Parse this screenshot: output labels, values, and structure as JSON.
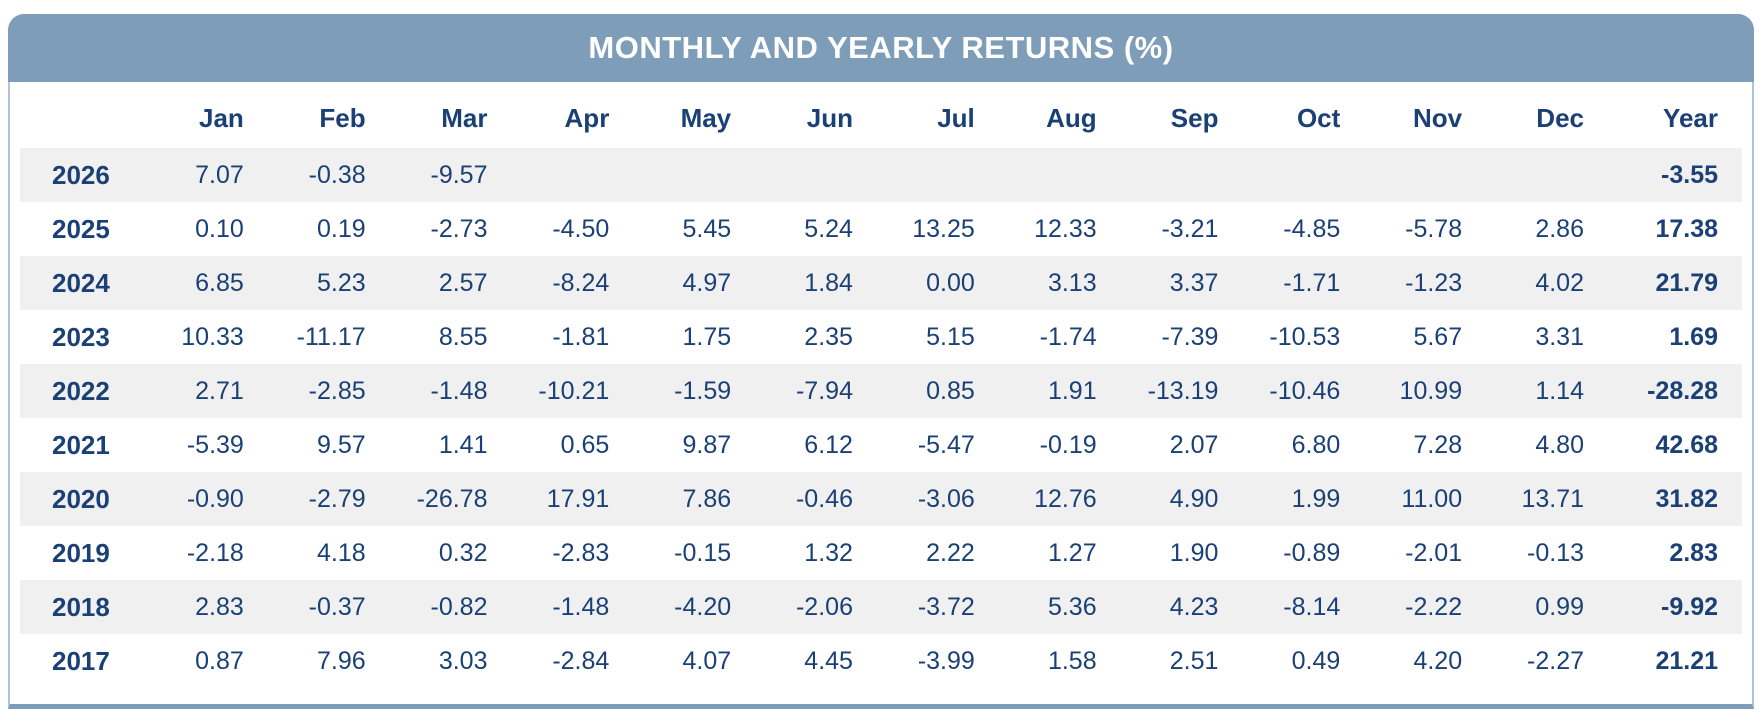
{
  "title": "MONTHLY AND YEARLY RETURNS (%)",
  "colors": {
    "header_bg": "#7e9db9",
    "header_text": "#ffffff",
    "text": "#1a4075",
    "row_alt_bg": "#f0f0f0",
    "side_border": "#b0c4d7"
  },
  "chart_data": {
    "type": "table",
    "title": "MONTHLY AND YEARLY RETURNS (%)",
    "columns": [
      "Jan",
      "Feb",
      "Mar",
      "Apr",
      "May",
      "Jun",
      "Jul",
      "Aug",
      "Sep",
      "Oct",
      "Nov",
      "Dec",
      "Year"
    ],
    "rows": [
      {
        "year": "2026",
        "monthly": [
          "7.07",
          "-0.38",
          "-9.57",
          "",
          "",
          "",
          "",
          "",
          "",
          "",
          "",
          ""
        ],
        "yearly": "-3.55"
      },
      {
        "year": "2025",
        "monthly": [
          "0.10",
          "0.19",
          "-2.73",
          "-4.50",
          "5.45",
          "5.24",
          "13.25",
          "12.33",
          "-3.21",
          "-4.85",
          "-5.78",
          "2.86"
        ],
        "yearly": "17.38"
      },
      {
        "year": "2024",
        "monthly": [
          "6.85",
          "5.23",
          "2.57",
          "-8.24",
          "4.97",
          "1.84",
          "0.00",
          "3.13",
          "3.37",
          "-1.71",
          "-1.23",
          "4.02"
        ],
        "yearly": "21.79"
      },
      {
        "year": "2023",
        "monthly": [
          "10.33",
          "-11.17",
          "8.55",
          "-1.81",
          "1.75",
          "2.35",
          "5.15",
          "-1.74",
          "-7.39",
          "-10.53",
          "5.67",
          "3.31"
        ],
        "yearly": "1.69"
      },
      {
        "year": "2022",
        "monthly": [
          "2.71",
          "-2.85",
          "-1.48",
          "-10.21",
          "-1.59",
          "-7.94",
          "0.85",
          "1.91",
          "-13.19",
          "-10.46",
          "10.99",
          "1.14"
        ],
        "yearly": "-28.28"
      },
      {
        "year": "2021",
        "monthly": [
          "-5.39",
          "9.57",
          "1.41",
          "0.65",
          "9.87",
          "6.12",
          "-5.47",
          "-0.19",
          "2.07",
          "6.80",
          "7.28",
          "4.80"
        ],
        "yearly": "42.68"
      },
      {
        "year": "2020",
        "monthly": [
          "-0.90",
          "-2.79",
          "-26.78",
          "17.91",
          "7.86",
          "-0.46",
          "-3.06",
          "12.76",
          "4.90",
          "1.99",
          "11.00",
          "13.71"
        ],
        "yearly": "31.82"
      },
      {
        "year": "2019",
        "monthly": [
          "-2.18",
          "4.18",
          "0.32",
          "-2.83",
          "-0.15",
          "1.32",
          "2.22",
          "1.27",
          "1.90",
          "-0.89",
          "-2.01",
          "-0.13"
        ],
        "yearly": "2.83"
      },
      {
        "year": "2018",
        "monthly": [
          "2.83",
          "-0.37",
          "-0.82",
          "-1.48",
          "-4.20",
          "-2.06",
          "-3.72",
          "5.36",
          "4.23",
          "-8.14",
          "-2.22",
          "0.99"
        ],
        "yearly": "-9.92"
      },
      {
        "year": "2017",
        "monthly": [
          "0.87",
          "7.96",
          "3.03",
          "-2.84",
          "4.07",
          "4.45",
          "-3.99",
          "1.58",
          "2.51",
          "0.49",
          "4.20",
          "-2.27"
        ],
        "yearly": "21.21"
      }
    ]
  }
}
